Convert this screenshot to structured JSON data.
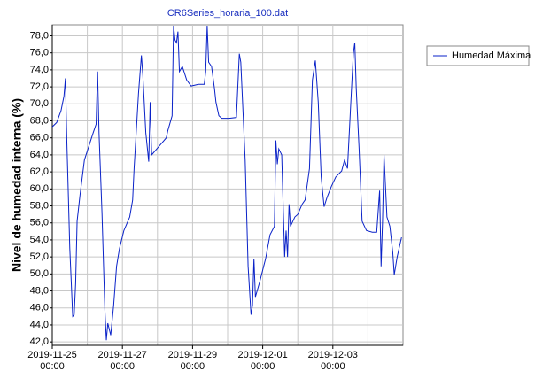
{
  "chart_data": {
    "type": "line",
    "title": "CR6Series_horaria_100.dat",
    "ylabel": "Nivel de humedad interna (%)",
    "legend": "upper right",
    "grid": true,
    "x": [
      "2019-11-25 00:00",
      "2019-11-25 03:00",
      "2019-11-25 06:00",
      "2019-11-25 08:00",
      "2019-11-25 09:00",
      "2019-11-25 10:00",
      "2019-11-25 11:00",
      "2019-11-25 12:00",
      "2019-11-25 14:00",
      "2019-11-25 15:00",
      "2019-11-25 16:00",
      "2019-11-25 17:00",
      "2019-11-25 19:00",
      "2019-11-25 22:00",
      "2019-11-26 01:00",
      "2019-11-26 04:00",
      "2019-11-26 06:00",
      "2019-11-26 07:00",
      "2019-11-26 08:00",
      "2019-11-26 10:00",
      "2019-11-26 12:00",
      "2019-11-26 13:00",
      "2019-11-26 14:00",
      "2019-11-26 16:00",
      "2019-11-26 18:00",
      "2019-11-26 20:00",
      "2019-11-26 22:00",
      "2019-11-27 01:00",
      "2019-11-27 05:00",
      "2019-11-27 07:00",
      "2019-11-27 08:00",
      "2019-11-27 11:00",
      "2019-11-27 13:00",
      "2019-11-27 14:00",
      "2019-11-27 16:00",
      "2019-11-27 18:00",
      "2019-11-27 19:00",
      "2019-11-27 20:00",
      "2019-11-27 21:00",
      "2019-11-28 01:00",
      "2019-11-28 06:00",
      "2019-11-28 07:00",
      "2019-11-28 10:00",
      "2019-11-28 11:00",
      "2019-11-28 12:00",
      "2019-11-28 13:00",
      "2019-11-28 14:00",
      "2019-11-28 15:00",
      "2019-11-28 17:00",
      "2019-11-28 20:00",
      "2019-11-28 23:00",
      "2019-11-29 04:00",
      "2019-11-29 08:00",
      "2019-11-29 09:00",
      "2019-11-29 10:00",
      "2019-11-29 11:00",
      "2019-11-29 13:00",
      "2019-11-29 15:00",
      "2019-11-29 16:00",
      "2019-11-29 18:00",
      "2019-11-29 20:00",
      "2019-11-30 01:00",
      "2019-11-30 06:00",
      "2019-11-30 08:00",
      "2019-11-30 09:00",
      "2019-11-30 12:00",
      "2019-11-30 14:00",
      "2019-11-30 16:00",
      "2019-11-30 17:00",
      "2019-11-30 18:00",
      "2019-11-30 19:00",
      "2019-11-30 22:00",
      "2019-12-01 02:00",
      "2019-12-01 05:00",
      "2019-12-01 08:00",
      "2019-12-01 09:00",
      "2019-12-01 10:00",
      "2019-12-01 11:00",
      "2019-12-01 13:00",
      "2019-12-01 15:00",
      "2019-12-01 16:00",
      "2019-12-01 17:00",
      "2019-12-01 18:00",
      "2019-12-01 19:00",
      "2019-12-01 22:00",
      "2019-12-02 00:00",
      "2019-12-02 03:00",
      "2019-12-02 05:00",
      "2019-12-02 08:00",
      "2019-12-02 10:00",
      "2019-12-02 12:00",
      "2019-12-02 14:00",
      "2019-12-02 16:00",
      "2019-12-02 18:00",
      "2019-12-02 20:00",
      "2019-12-02 23:00",
      "2019-12-03 02:00",
      "2019-12-03 06:00",
      "2019-12-03 08:00",
      "2019-12-03 10:00",
      "2019-12-03 12:00",
      "2019-12-03 14:00",
      "2019-12-03 15:00",
      "2019-12-03 16:00",
      "2019-12-03 18:00",
      "2019-12-03 20:00",
      "2019-12-03 23:00",
      "2019-12-04 03:00",
      "2019-12-04 06:00",
      "2019-12-04 08:00",
      "2019-12-04 09:00",
      "2019-12-04 10:00",
      "2019-12-04 11:00",
      "2019-12-04 13:00",
      "2019-12-04 15:00",
      "2019-12-04 17:00",
      "2019-12-04 18:00",
      "2019-12-04 20:00",
      "2019-12-04 23:00"
    ],
    "series": [
      {
        "name": "Humedad Máxima",
        "color": "#0a22c8",
        "values": [
          67.3,
          67.8,
          69.2,
          70.9,
          73.0,
          65.5,
          59.3,
          53.0,
          45.0,
          45.2,
          48.9,
          56.2,
          59.3,
          63.4,
          65.0,
          66.6,
          67.6,
          73.8,
          66.6,
          57.3,
          45.8,
          42.2,
          44.2,
          42.8,
          46.3,
          50.9,
          53.0,
          55.1,
          56.7,
          58.7,
          62.4,
          71.2,
          75.7,
          73.3,
          66.6,
          63.2,
          70.2,
          64.0,
          64.2,
          65.0,
          66.0,
          66.8,
          68.6,
          79.2,
          77.5,
          77.2,
          78.5,
          73.8,
          74.4,
          72.8,
          72.1,
          72.3,
          72.3,
          73.8,
          79.2,
          74.9,
          74.4,
          71.8,
          70.2,
          68.6,
          68.3,
          68.3,
          68.4,
          75.9,
          74.9,
          63.4,
          50.9,
          45.2,
          46.3,
          51.8,
          47.3,
          49.1,
          51.8,
          54.6,
          55.6,
          65.7,
          62.9,
          64.7,
          64.0,
          52.0,
          55.1,
          52.0,
          58.2,
          55.6,
          56.7,
          57.0,
          58.2,
          58.7,
          62.4,
          72.8,
          75.1,
          70.2,
          61.4,
          57.9,
          59.0,
          60.3,
          61.4,
          62.1,
          63.4,
          62.4,
          69.2,
          75.9,
          77.2,
          71.8,
          64.5,
          56.2,
          55.1,
          54.9,
          54.9,
          59.8,
          50.9,
          56.2,
          64.0,
          56.7,
          55.6,
          52.5,
          49.9,
          52.0,
          54.3
        ]
      }
    ],
    "xlim": [
      "2019-11-25 00:00",
      "2019-12-05 00:00"
    ],
    "xticks": [
      {
        "value": "2019-11-25 00:00",
        "label": "2019-11-25\n00:00"
      },
      {
        "value": "2019-11-27 00:00",
        "label": "2019-11-27\n00:00"
      },
      {
        "value": "2019-11-29 00:00",
        "label": "2019-11-29\n00:00"
      },
      {
        "value": "2019-12-01 00:00",
        "label": "2019-12-01\n00:00"
      },
      {
        "value": "2019-12-03 00:00",
        "label": "2019-12-03\n00:00"
      }
    ],
    "xminorticks": [
      "2019-11-26 00:00",
      "2019-11-28 00:00",
      "2019-11-30 00:00",
      "2019-12-02 00:00",
      "2019-12-04 00:00"
    ],
    "ylim": [
      41.6,
      79.3
    ],
    "yticks": [
      {
        "value": 42,
        "label": "42,0"
      },
      {
        "value": 44,
        "label": "44,0"
      },
      {
        "value": 46,
        "label": "46,0"
      },
      {
        "value": 48,
        "label": "48,0"
      },
      {
        "value": 50,
        "label": "50,0"
      },
      {
        "value": 52,
        "label": "52,0"
      },
      {
        "value": 54,
        "label": "54,0"
      },
      {
        "value": 56,
        "label": "56,0"
      },
      {
        "value": 58,
        "label": "58,0"
      },
      {
        "value": 60,
        "label": "60,0"
      },
      {
        "value": 62,
        "label": "62,0"
      },
      {
        "value": 64,
        "label": "64,0"
      },
      {
        "value": 66,
        "label": "66,0"
      },
      {
        "value": 68,
        "label": "68,0"
      },
      {
        "value": 70,
        "label": "70,0"
      },
      {
        "value": 72,
        "label": "72,0"
      },
      {
        "value": 74,
        "label": "74,0"
      },
      {
        "value": 76,
        "label": "76,0"
      },
      {
        "value": 78,
        "label": "78,0"
      }
    ]
  }
}
